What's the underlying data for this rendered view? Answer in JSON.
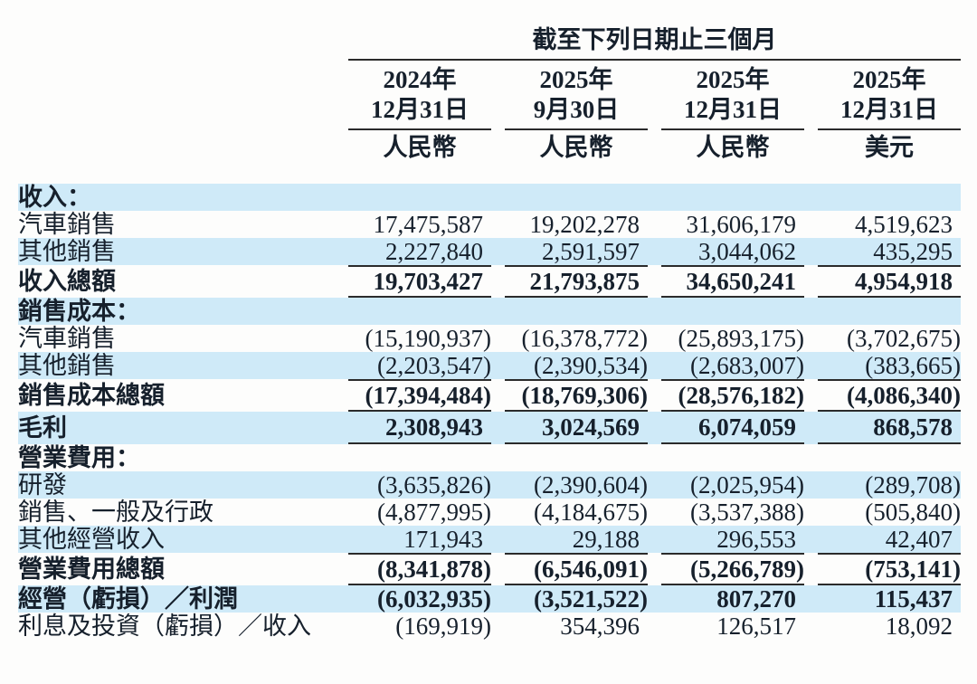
{
  "header": {
    "title": "截至下列日期止三個月",
    "columns": [
      {
        "year": "2024年",
        "date": "12月31日",
        "currency": "人民幣"
      },
      {
        "year": "2025年",
        "date": "9月30日",
        "currency": "人民幣"
      },
      {
        "year": "2025年",
        "date": "12月31日",
        "currency": "人民幣"
      },
      {
        "year": "2025年",
        "date": "12月31日",
        "currency": "美元"
      }
    ]
  },
  "colors": {
    "band_blue": "#cfeaf8",
    "text": "#16202c",
    "rule": "#2b2b2b",
    "background": "#fdfdfc"
  },
  "table": {
    "rows": [
      {
        "label": "收入：",
        "bold": true,
        "values_bold": false,
        "band": "blue",
        "tall": false,
        "rule_above": false,
        "rule_below": false,
        "values": [
          "",
          "",
          "",
          ""
        ]
      },
      {
        "label": "汽車銷售",
        "bold": false,
        "values_bold": false,
        "band": "white",
        "tall": false,
        "rule_above": false,
        "rule_below": false,
        "values": [
          "17,475,587",
          "19,202,278",
          "31,606,179",
          "4,519,623"
        ]
      },
      {
        "label": "其他銷售",
        "bold": false,
        "values_bold": false,
        "band": "blue",
        "tall": false,
        "rule_above": false,
        "rule_below": false,
        "values": [
          "2,227,840",
          "2,591,597",
          "3,044,062",
          "435,295"
        ]
      },
      {
        "label": "收入總額",
        "bold": true,
        "values_bold": true,
        "band": "white",
        "tall": true,
        "rule_above": true,
        "rule_below": true,
        "values": [
          "19,703,427",
          "21,793,875",
          "34,650,241",
          "4,954,918"
        ]
      },
      {
        "label": "銷售成本：",
        "bold": true,
        "values_bold": false,
        "band": "blue",
        "tall": false,
        "rule_above": false,
        "rule_below": false,
        "values": [
          "",
          "",
          "",
          ""
        ]
      },
      {
        "label": "汽車銷售",
        "bold": false,
        "values_bold": false,
        "band": "white",
        "tall": false,
        "rule_above": false,
        "rule_below": false,
        "values": [
          "(15,190,937)",
          "(16,378,772)",
          "(25,893,175)",
          "(3,702,675)"
        ]
      },
      {
        "label": "其他銷售",
        "bold": false,
        "values_bold": false,
        "band": "blue",
        "tall": false,
        "rule_above": false,
        "rule_below": false,
        "values": [
          "(2,203,547)",
          "(2,390,534)",
          "(2,683,007)",
          "(383,665)"
        ]
      },
      {
        "label": "銷售成本總額",
        "bold": true,
        "values_bold": true,
        "band": "white",
        "tall": true,
        "rule_above": true,
        "rule_below": true,
        "values": [
          "(17,394,484)",
          "(18,769,306)",
          "(28,576,182)",
          "(4,086,340)"
        ]
      },
      {
        "label": "毛利",
        "bold": true,
        "values_bold": true,
        "band": "blue",
        "tall": true,
        "rule_above": false,
        "rule_below": true,
        "values": [
          "2,308,943",
          "3,024,569",
          "6,074,059",
          "868,578"
        ]
      },
      {
        "label": "營業費用：",
        "bold": true,
        "values_bold": false,
        "band": "white",
        "tall": false,
        "rule_above": false,
        "rule_below": false,
        "values": [
          "",
          "",
          "",
          ""
        ]
      },
      {
        "label": "研發",
        "bold": false,
        "values_bold": false,
        "band": "blue",
        "tall": false,
        "rule_above": false,
        "rule_below": false,
        "values": [
          "(3,635,826)",
          "(2,390,604)",
          "(2,025,954)",
          "(289,708)"
        ]
      },
      {
        "label": "銷售、一般及行政",
        "bold": false,
        "values_bold": false,
        "band": "white",
        "tall": false,
        "rule_above": false,
        "rule_below": false,
        "values": [
          "(4,877,995)",
          "(4,184,675)",
          "(3,537,388)",
          "(505,840)"
        ]
      },
      {
        "label": "其他經營收入",
        "bold": false,
        "values_bold": false,
        "band": "blue",
        "tall": false,
        "rule_above": false,
        "rule_below": false,
        "values": [
          "171,943",
          "29,188",
          "296,553",
          "42,407"
        ]
      },
      {
        "label": "營業費用總額",
        "bold": true,
        "values_bold": true,
        "band": "white",
        "tall": true,
        "rule_above": true,
        "rule_below": true,
        "values": [
          "(8,341,878)",
          "(6,546,091)",
          "(5,266,789)",
          "(753,141)"
        ]
      },
      {
        "label": "經營（虧損）／利潤",
        "bold": true,
        "values_bold": true,
        "band": "blue",
        "tall": false,
        "rule_above": false,
        "rule_below": false,
        "values": [
          "(6,032,935)",
          "(3,521,522)",
          "807,270",
          "115,437"
        ]
      },
      {
        "label": "利息及投資（虧損）／收入",
        "bold": false,
        "values_bold": false,
        "band": "white",
        "tall": false,
        "rule_above": false,
        "rule_below": false,
        "values": [
          "(169,919)",
          "354,396",
          "126,517",
          "18,092"
        ]
      }
    ]
  }
}
